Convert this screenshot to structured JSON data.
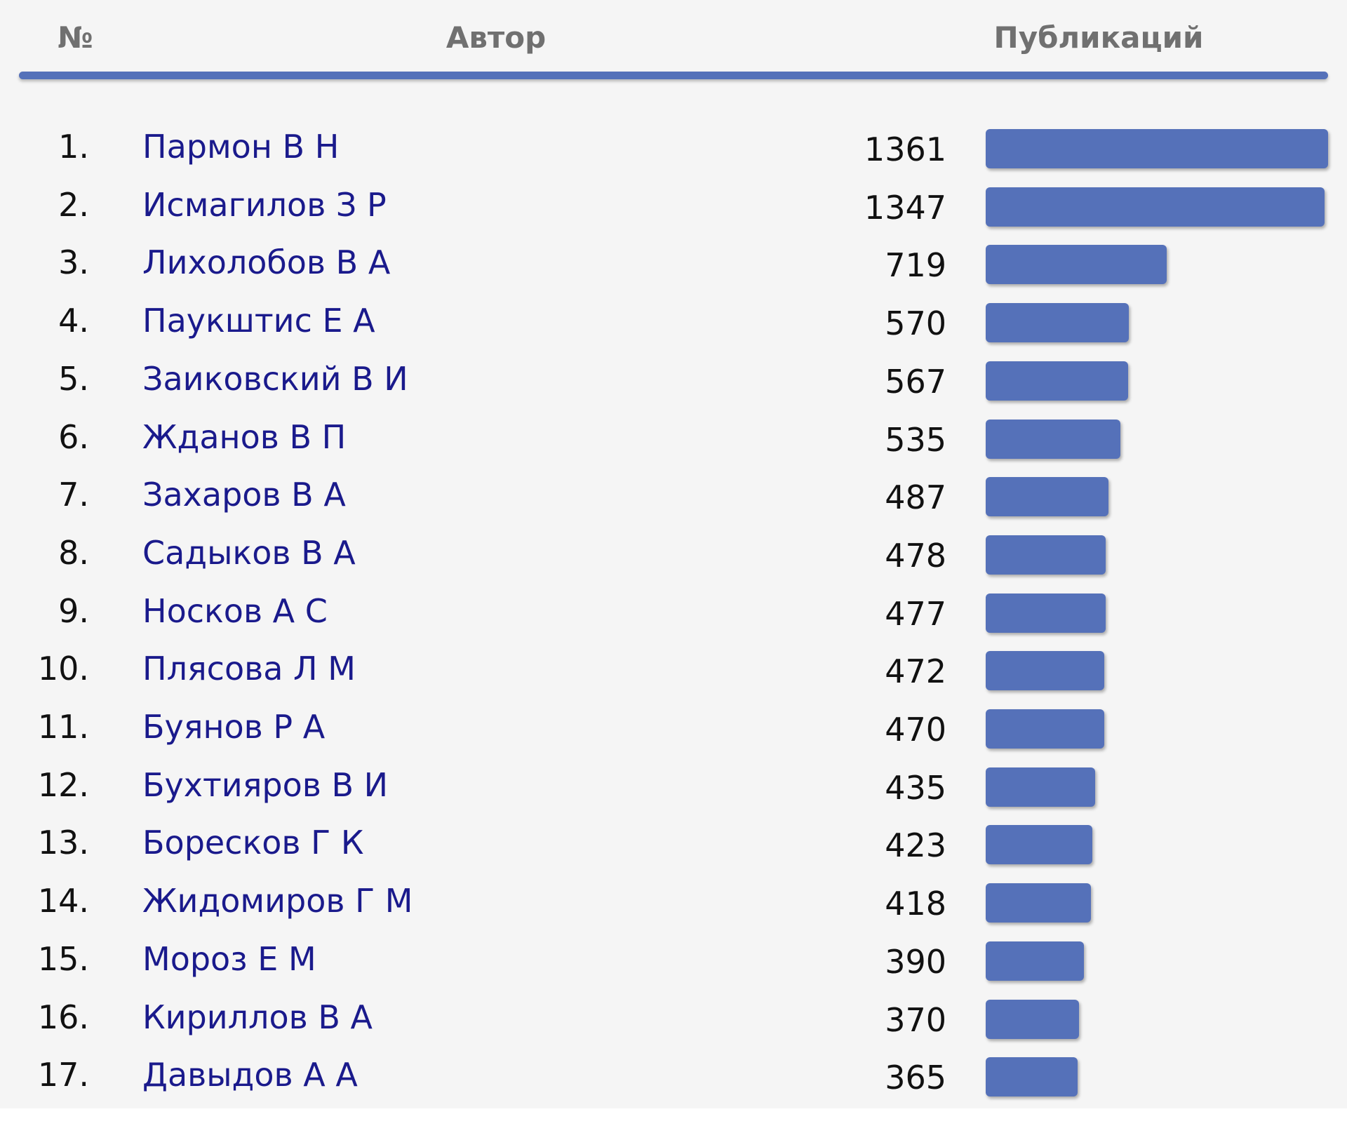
{
  "header": {
    "num_label": "№",
    "author_label": "Автор",
    "publications_label": "Публикаций"
  },
  "colors": {
    "bar": "#5571b9",
    "author_link": "#1a1a8c",
    "header_text": "#707070",
    "background": "#f5f5f5"
  },
  "chart_data": {
    "type": "bar",
    "categories": [
      "Пармон В Н",
      "Исмагилов З Р",
      "Лихолобов В А",
      "Паукштис Е А",
      "Заиковский В И",
      "Жданов В П",
      "Захаров В А",
      "Садыков В А",
      "Носков А С",
      "Плясова Л М",
      "Буянов Р А",
      "Бухтияров В И",
      "Боресков Г К",
      "Жидомиров Г М",
      "Мороз Е М",
      "Кириллов В А",
      "Давыдов А А"
    ],
    "ranks": [
      "1.",
      "2.",
      "3.",
      "4.",
      "5.",
      "6.",
      "7.",
      "8.",
      "9.",
      "10.",
      "11.",
      "12.",
      "13.",
      "14.",
      "15.",
      "16.",
      "17."
    ],
    "values": [
      1361,
      1347,
      719,
      570,
      567,
      535,
      487,
      478,
      477,
      472,
      470,
      435,
      423,
      418,
      390,
      370,
      365
    ],
    "xlim": [
      0,
      1361
    ],
    "grid": false,
    "legend": "none"
  }
}
